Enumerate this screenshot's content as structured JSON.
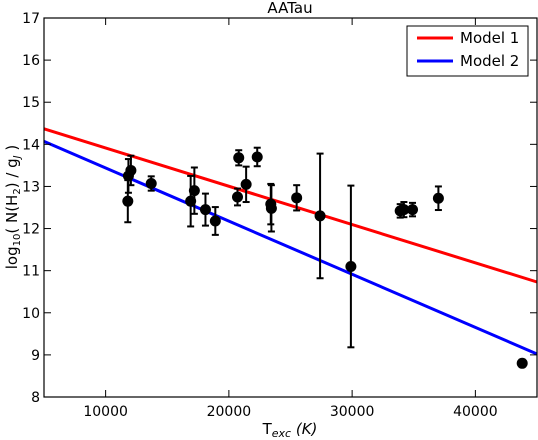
{
  "chart_data": {
    "type": "scatter",
    "title": "AATau",
    "xlabel": "T",
    "xlabel_sub": "exc",
    "xlabel_unit": "(K)",
    "ylabel_prefix": "log",
    "ylabel_sub": "10",
    "ylabel_main": "( N(H",
    "ylabel_h2sub": "2",
    "ylabel_mid": ") / g",
    "ylabel_jsub": "J",
    "ylabel_end": " )",
    "xlim": [
      5000,
      45000
    ],
    "ylim": [
      8,
      17
    ],
    "xticks": [
      10000,
      20000,
      30000,
      40000
    ],
    "xtick_labels": [
      "10000",
      "20000",
      "30000",
      "40000"
    ],
    "yticks": [
      8,
      9,
      10,
      11,
      12,
      13,
      14,
      15,
      16,
      17
    ],
    "ytick_labels": [
      "8",
      "9",
      "10",
      "11",
      "12",
      "13",
      "14",
      "15",
      "16",
      "17"
    ],
    "grid": false,
    "legend_position": "top-right",
    "points": [
      {
        "x": 11800,
        "y": 12.65,
        "err": 0.5
      },
      {
        "x": 11850,
        "y": 13.25,
        "err": 0.4
      },
      {
        "x": 12050,
        "y": 13.38,
        "err": 0.35
      },
      {
        "x": 13700,
        "y": 13.07,
        "err": 0.17
      },
      {
        "x": 16900,
        "y": 12.65,
        "err": 0.6
      },
      {
        "x": 17200,
        "y": 12.9,
        "err": 0.55
      },
      {
        "x": 18100,
        "y": 12.45,
        "err": 0.38
      },
      {
        "x": 18900,
        "y": 12.18,
        "err": 0.33
      },
      {
        "x": 20700,
        "y": 12.75,
        "err": 0.2
      },
      {
        "x": 20800,
        "y": 13.68,
        "err": 0.18
      },
      {
        "x": 21400,
        "y": 13.05,
        "err": 0.42
      },
      {
        "x": 22300,
        "y": 13.7,
        "err": 0.22
      },
      {
        "x": 23400,
        "y": 12.58,
        "err": 0.48
      },
      {
        "x": 23450,
        "y": 12.48,
        "err": 0.55
      },
      {
        "x": 25500,
        "y": 12.73,
        "err": 0.3
      },
      {
        "x": 27400,
        "y": 12.3,
        "err": 1.48
      },
      {
        "x": 29900,
        "y": 11.1,
        "err": 1.92
      },
      {
        "x": 33900,
        "y": 12.42,
        "err": 0.16
      },
      {
        "x": 34200,
        "y": 12.45,
        "err": 0.18
      },
      {
        "x": 34900,
        "y": 12.45,
        "err": 0.16
      },
      {
        "x": 37000,
        "y": 12.72,
        "err": 0.28
      },
      {
        "x": 43800,
        "y": 8.8,
        "err": 0
      }
    ],
    "series": [
      {
        "name": "Model 1",
        "color": "#ff0000",
        "x": [
          5000,
          45000
        ],
        "y": [
          14.37,
          10.73
        ]
      },
      {
        "name": "Model 2",
        "color": "#0000ff",
        "x": [
          5000,
          45000
        ],
        "y": [
          14.07,
          9.02
        ]
      }
    ],
    "marker_color": "#000000"
  }
}
